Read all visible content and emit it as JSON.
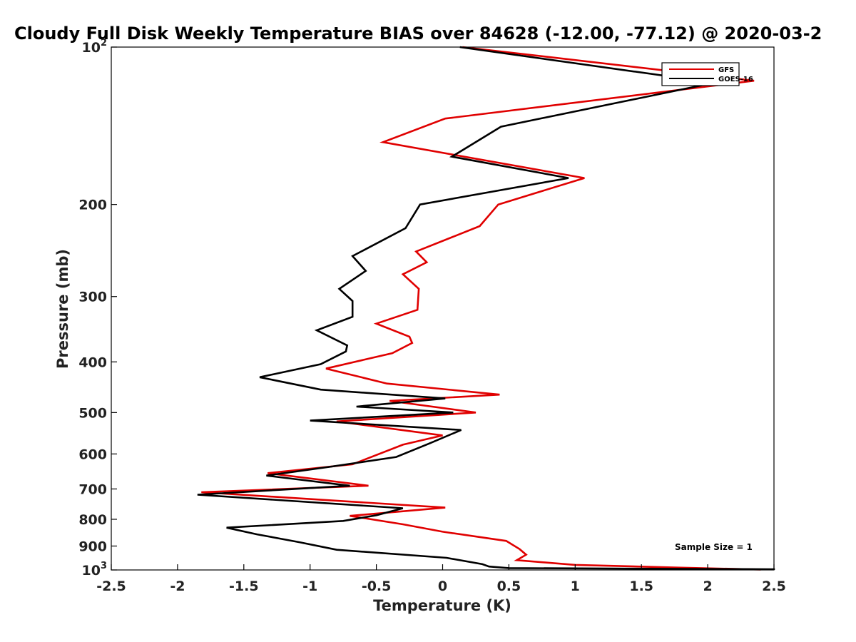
{
  "chart_data": {
    "type": "line",
    "title": "Cloudy Full Disk Weekly Temperature BIAS over 84628 (-12.00, -77.12) @ 2020-03-2",
    "xlabel": "Temperature (K)",
    "ylabel": "Pressure (mb)",
    "xlim": [
      -2.5,
      2.5
    ],
    "ylim": [
      100,
      1000
    ],
    "y_scale": "log",
    "y_reversed": true,
    "x_ticks": [
      "-2.5",
      "-2",
      "-1.5",
      "-1",
      "-0.5",
      "0",
      "0.5",
      "1",
      "1.5",
      "2",
      "2.5"
    ],
    "x_tick_values": [
      -2.5,
      -2,
      -1.5,
      -1,
      -0.5,
      0,
      0.5,
      1,
      1.5,
      2,
      2.5
    ],
    "y_ticks": [
      {
        "value": 100,
        "base": "10",
        "exp": "2"
      },
      {
        "value": 200,
        "label": "200"
      },
      {
        "value": 300,
        "label": "300"
      },
      {
        "value": 400,
        "label": "400"
      },
      {
        "value": 500,
        "label": "500"
      },
      {
        "value": 600,
        "label": "600"
      },
      {
        "value": 700,
        "label": "700"
      },
      {
        "value": 800,
        "label": "800"
      },
      {
        "value": 900,
        "label": "900"
      },
      {
        "value": 1000,
        "base": "10",
        "exp": "3"
      }
    ],
    "legend_position": "top-right",
    "annotation": "Sample Size = 1",
    "series": [
      {
        "name": "GFS",
        "color": "#e00000",
        "points": [
          [
            0.15,
            100
          ],
          [
            2.35,
            116
          ],
          [
            0.02,
            137
          ],
          [
            -0.45,
            152
          ],
          [
            1.07,
            178
          ],
          [
            0.42,
            200
          ],
          [
            0.28,
            220
          ],
          [
            -0.2,
            246
          ],
          [
            -0.12,
            258
          ],
          [
            -0.3,
            272
          ],
          [
            -0.18,
            290
          ],
          [
            -0.19,
            318
          ],
          [
            -0.5,
            338
          ],
          [
            -0.25,
            358
          ],
          [
            -0.23,
            368
          ],
          [
            -0.38,
            385
          ],
          [
            -0.88,
            412
          ],
          [
            -0.42,
            440
          ],
          [
            0.43,
            462
          ],
          [
            -0.4,
            475
          ],
          [
            0.25,
            500
          ],
          [
            -0.8,
            520
          ],
          [
            0.0,
            553
          ],
          [
            -0.3,
            576
          ],
          [
            -0.68,
            628
          ],
          [
            -1.32,
            653
          ],
          [
            -0.56,
            690
          ],
          [
            -1.82,
            710
          ],
          [
            0.02,
            760
          ],
          [
            -0.7,
            788
          ],
          [
            -0.3,
            818
          ],
          [
            0.0,
            845
          ],
          [
            0.48,
            880
          ],
          [
            0.58,
            912
          ],
          [
            0.63,
            935
          ],
          [
            0.56,
            958
          ],
          [
            1.0,
            978
          ],
          [
            1.8,
            990
          ],
          [
            2.4,
            998
          ]
        ]
      },
      {
        "name": "GOES-16",
        "color": "#000000",
        "points": [
          [
            0.13,
            100
          ],
          [
            2.05,
            117
          ],
          [
            0.44,
            142
          ],
          [
            0.07,
            162
          ],
          [
            0.95,
            178
          ],
          [
            -0.17,
            200
          ],
          [
            -0.28,
            222
          ],
          [
            -0.68,
            251
          ],
          [
            -0.58,
            268
          ],
          [
            -0.78,
            290
          ],
          [
            -0.68,
            306
          ],
          [
            -0.68,
            328
          ],
          [
            -0.95,
            348
          ],
          [
            -0.72,
            372
          ],
          [
            -0.73,
            382
          ],
          [
            -0.92,
            404
          ],
          [
            -1.38,
            428
          ],
          [
            -0.92,
            452
          ],
          [
            0.02,
            470
          ],
          [
            -0.65,
            487
          ],
          [
            0.08,
            500
          ],
          [
            -1.0,
            518
          ],
          [
            0.14,
            540
          ],
          [
            -0.1,
            573
          ],
          [
            -0.35,
            608
          ],
          [
            -0.85,
            635
          ],
          [
            -1.33,
            660
          ],
          [
            -0.7,
            690
          ],
          [
            -1.85,
            718
          ],
          [
            -0.3,
            762
          ],
          [
            -0.5,
            786
          ],
          [
            -0.75,
            806
          ],
          [
            -1.63,
            830
          ],
          [
            -1.4,
            855
          ],
          [
            -1.08,
            885
          ],
          [
            -0.8,
            915
          ],
          [
            0.03,
            948
          ],
          [
            0.3,
            975
          ],
          [
            0.35,
            985
          ],
          [
            0.5,
            992
          ],
          [
            2.5,
            997
          ],
          [
            2.5,
            1000
          ]
        ]
      }
    ]
  }
}
